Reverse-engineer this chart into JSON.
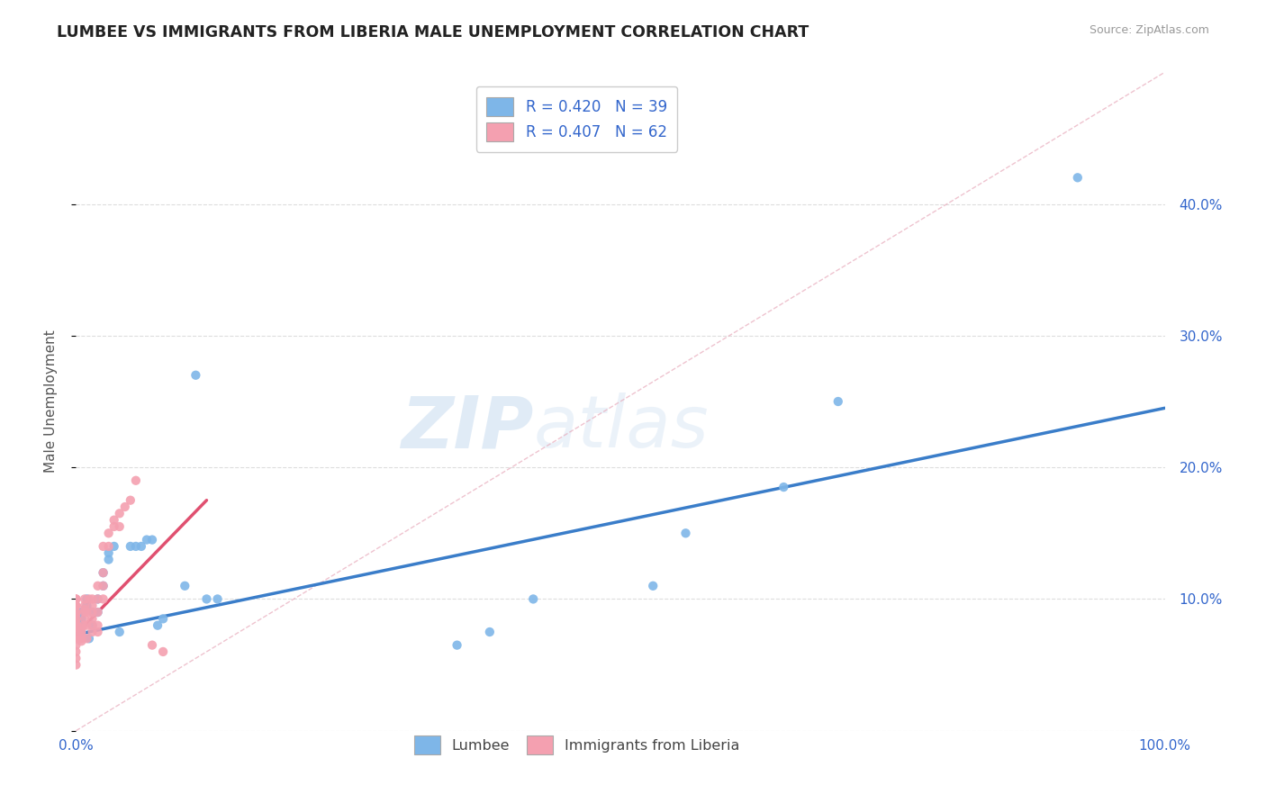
{
  "title": "LUMBEE VS IMMIGRANTS FROM LIBERIA MALE UNEMPLOYMENT CORRELATION CHART",
  "source": "Source: ZipAtlas.com",
  "ylabel": "Male Unemployment",
  "xlim": [
    0,
    1.0
  ],
  "ylim": [
    0,
    0.5
  ],
  "xticks": [
    0.0,
    0.1,
    0.2,
    0.3,
    0.4,
    0.5,
    0.6,
    0.7,
    0.8,
    0.9,
    1.0
  ],
  "xticklabels": [
    "0.0%",
    "",
    "",
    "",
    "",
    "",
    "",
    "",
    "",
    "",
    "100.0%"
  ],
  "yticks": [
    0.0,
    0.1,
    0.2,
    0.3,
    0.4
  ],
  "yticklabels": [
    "",
    "10.0%",
    "20.0%",
    "30.0%",
    "40.0%"
  ],
  "lumbee_color": "#7EB6E8",
  "liberia_color": "#F4A0B0",
  "lumbee_line_color": "#3A7DC9",
  "liberia_line_color": "#E05070",
  "grid_color": "#DDDDDD",
  "lumbee_R": 0.42,
  "lumbee_N": 39,
  "liberia_R": 0.407,
  "liberia_N": 62,
  "watermark_zip": "ZIP",
  "watermark_atlas": "atlas",
  "lumbee_x": [
    0.005,
    0.005,
    0.005,
    0.005,
    0.005,
    0.008,
    0.01,
    0.01,
    0.01,
    0.012,
    0.015,
    0.015,
    0.02,
    0.02,
    0.025,
    0.025,
    0.03,
    0.03,
    0.035,
    0.04,
    0.05,
    0.055,
    0.06,
    0.065,
    0.07,
    0.075,
    0.08,
    0.1,
    0.11,
    0.12,
    0.13,
    0.35,
    0.38,
    0.42,
    0.53,
    0.56,
    0.65,
    0.7,
    0.92
  ],
  "lumbee_y": [
    0.075,
    0.08,
    0.082,
    0.085,
    0.09,
    0.092,
    0.093,
    0.095,
    0.1,
    0.07,
    0.08,
    0.09,
    0.09,
    0.1,
    0.11,
    0.12,
    0.13,
    0.135,
    0.14,
    0.075,
    0.14,
    0.14,
    0.14,
    0.145,
    0.145,
    0.08,
    0.085,
    0.11,
    0.27,
    0.1,
    0.1,
    0.065,
    0.075,
    0.1,
    0.11,
    0.15,
    0.185,
    0.25,
    0.42
  ],
  "liberia_x": [
    0.0,
    0.0,
    0.0,
    0.0,
    0.0,
    0.0,
    0.0,
    0.0,
    0.0,
    0.0,
    0.0,
    0.0,
    0.0,
    0.0,
    0.0,
    0.0,
    0.0,
    0.0,
    0.0,
    0.0,
    0.0,
    0.005,
    0.005,
    0.005,
    0.005,
    0.005,
    0.007,
    0.008,
    0.008,
    0.008,
    0.008,
    0.008,
    0.01,
    0.01,
    0.01,
    0.012,
    0.015,
    0.015,
    0.015,
    0.015,
    0.015,
    0.015,
    0.02,
    0.02,
    0.02,
    0.02,
    0.02,
    0.025,
    0.025,
    0.025,
    0.025,
    0.03,
    0.03,
    0.035,
    0.035,
    0.04,
    0.04,
    0.045,
    0.05,
    0.055,
    0.07,
    0.08
  ],
  "liberia_y": [
    0.05,
    0.055,
    0.06,
    0.065,
    0.07,
    0.07,
    0.072,
    0.075,
    0.075,
    0.08,
    0.08,
    0.08,
    0.083,
    0.085,
    0.088,
    0.09,
    0.09,
    0.095,
    0.095,
    0.1,
    0.1,
    0.068,
    0.07,
    0.072,
    0.075,
    0.078,
    0.08,
    0.085,
    0.09,
    0.092,
    0.095,
    0.1,
    0.07,
    0.08,
    0.09,
    0.1,
    0.075,
    0.08,
    0.085,
    0.09,
    0.095,
    0.1,
    0.075,
    0.08,
    0.09,
    0.1,
    0.11,
    0.1,
    0.11,
    0.12,
    0.14,
    0.14,
    0.15,
    0.155,
    0.16,
    0.155,
    0.165,
    0.17,
    0.175,
    0.19,
    0.065,
    0.06
  ],
  "lumbee_line_x": [
    0.0,
    1.0
  ],
  "lumbee_line_y": [
    0.073,
    0.245
  ],
  "liberia_line_x": [
    0.0,
    0.12
  ],
  "liberia_line_y": [
    0.073,
    0.175
  ],
  "ref_line_x": [
    0.0,
    1.0
  ],
  "ref_line_y": [
    0.0,
    0.5
  ]
}
